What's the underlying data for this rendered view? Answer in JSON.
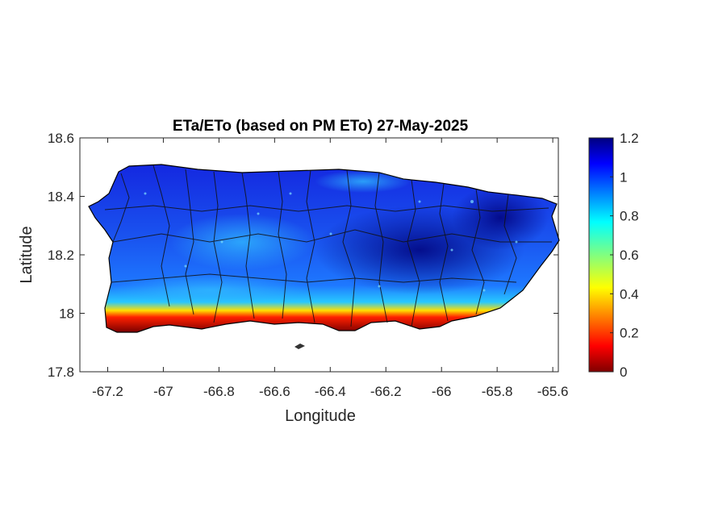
{
  "title": "ETa/ETo (based on PM ETo) 27-May-2025",
  "axes": {
    "xlabel": "Longitude",
    "ylabel": "Latitude",
    "xlim": [
      -67.3,
      -65.58
    ],
    "ylim": [
      17.8,
      18.6
    ],
    "xticks": [
      "-67.2",
      "-67",
      "-66.8",
      "-66.6",
      "-66.4",
      "-66.2",
      "-66",
      "-65.8",
      "-65.6"
    ],
    "yticks": [
      "18.6",
      "18.4",
      "18.2",
      "18",
      "17.8"
    ]
  },
  "colorbar": {
    "colormap": "jet",
    "range": [
      0,
      1.2
    ],
    "ticks": [
      "1.2",
      "1",
      "0.8",
      "0.6",
      "0.4",
      "0.2",
      "0"
    ]
  },
  "chart_data": {
    "type": "heatmap",
    "title": "ETa/ETo (based on PM ETo) 27-May-2025",
    "xlabel": "Longitude",
    "ylabel": "Latitude",
    "xlim": [
      -67.3,
      -65.58
    ],
    "ylim": [
      17.8,
      18.6
    ],
    "value_range": [
      0,
      1.2
    ],
    "colormap": "jet",
    "region": "Puerto Rico",
    "summary": {
      "north_and_interior": 1.0,
      "central_east_highlands": 1.1,
      "south_coast": 0.05
    }
  }
}
